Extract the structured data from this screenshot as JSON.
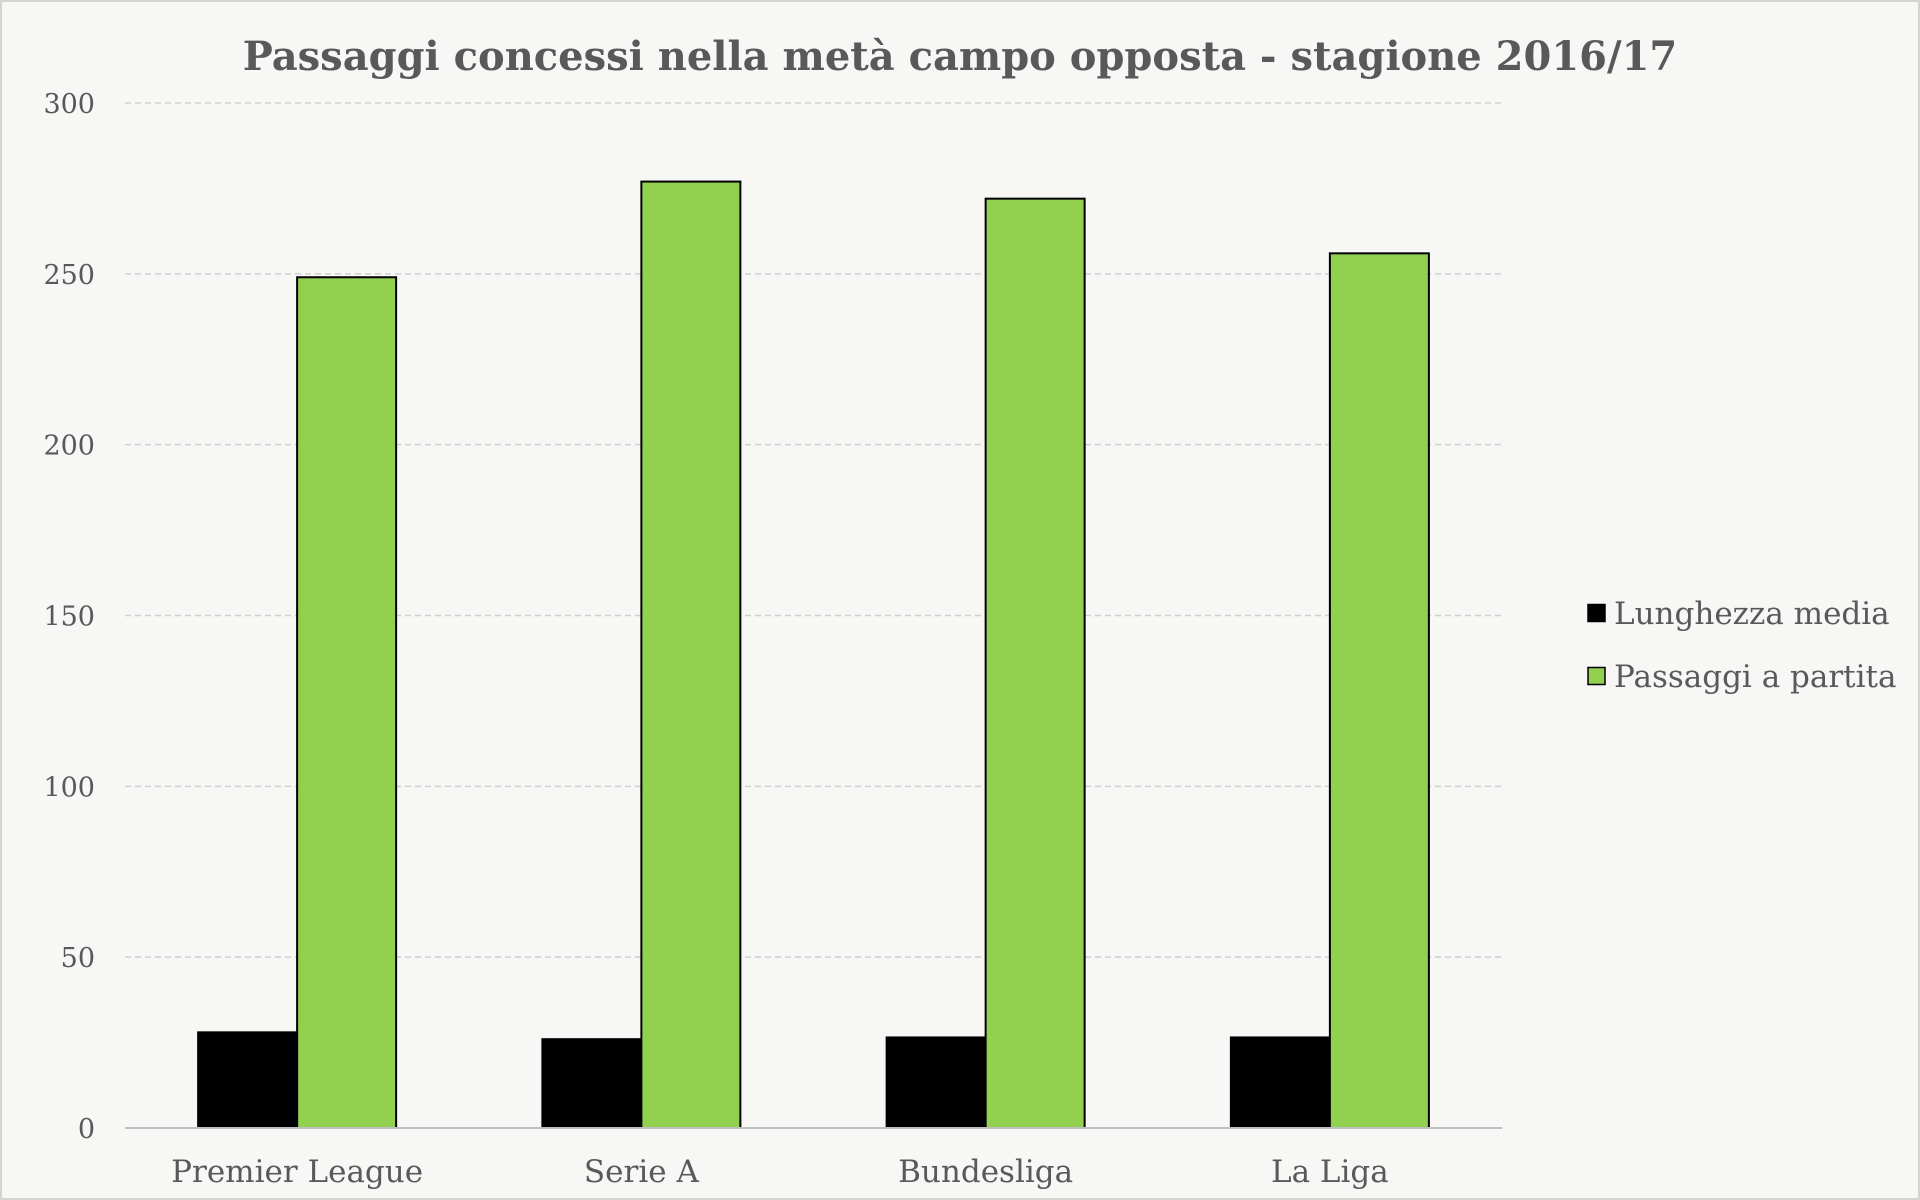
{
  "chart_data": {
    "type": "bar",
    "title": "Passaggi concessi nella metà campo opposta - stagione 2016/17",
    "xlabel": "",
    "ylabel": "",
    "categories": [
      "Premier League",
      "Serie A",
      "Bundesliga",
      "La Liga"
    ],
    "series": [
      {
        "name": "Lunghezza media",
        "values": [
          28,
          26,
          26.5,
          26.5
        ],
        "color": "#000000"
      },
      {
        "name": "Passaggi a partita",
        "values": [
          249,
          277,
          272,
          256
        ],
        "color": "#92d050"
      }
    ],
    "ylim": [
      0,
      300
    ],
    "yticks": [
      0,
      50,
      100,
      150,
      200,
      250,
      300
    ],
    "grid": true,
    "legend_position": "right"
  }
}
